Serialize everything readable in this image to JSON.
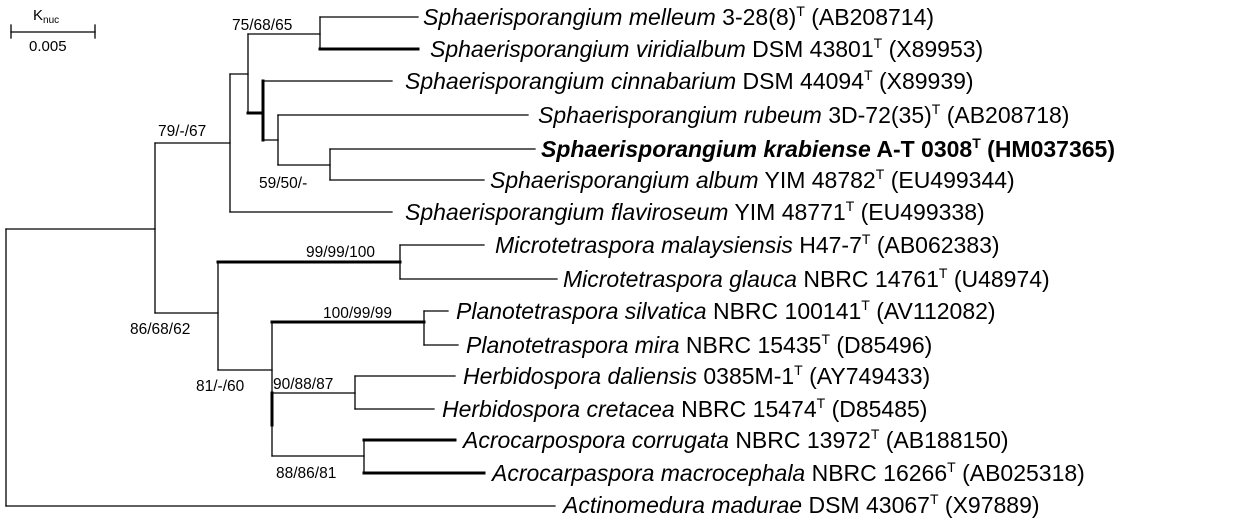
{
  "scale_bar": {
    "label": "K",
    "label_subscript": "nuc",
    "value": "0.005"
  },
  "taxa": [
    {
      "genus": "Sphaerisporangium",
      "species": "melleum",
      "strain": "3-28(8)",
      "type": "T",
      "accession": "(AB208714)"
    },
    {
      "genus": "Sphaerisporangium",
      "species": "viridialbum",
      "strain": "DSM 43801",
      "type": "T",
      "accession": "(X89953)"
    },
    {
      "genus": "Sphaerisporangium",
      "species": "cinnabarium",
      "strain": "DSM 44094",
      "type": "T",
      "accession": "(X89939)"
    },
    {
      "genus": "Sphaerisporangium",
      "species": "rubeum",
      "strain": "3D-72(35)",
      "type": "T",
      "accession": "(AB208718)"
    },
    {
      "genus": "Sphaerisporangium",
      "species": "krabiense",
      "strain": "A-T 0308",
      "type": "T",
      "accession": "(HM037365)",
      "emphasis": "bold"
    },
    {
      "genus": "Sphaerisporangium",
      "species": "album",
      "strain": "YIM 48782",
      "type": "T",
      "accession": "(EU499344)"
    },
    {
      "genus": "Sphaerisporangium",
      "species": "flaviroseum",
      "strain": "YIM 48771",
      "type": "T",
      "accession": "(EU499338)"
    },
    {
      "genus": "Microtetraspora",
      "species": "malaysiensis",
      "strain": "H47-7",
      "type": "T",
      "accession": "(AB062383)"
    },
    {
      "genus": "Microtetraspora",
      "species": "glauca",
      "strain": "NBRC 14761",
      "type": "T",
      "accession": "(U48974)"
    },
    {
      "genus": "Planotetraspora",
      "species": "silvatica",
      "strain": "NBRC 100141",
      "type": "T",
      "accession": "(AV112082)"
    },
    {
      "genus": "Planotetraspora",
      "species": "mira",
      "strain": "NBRC 15435",
      "type": "T",
      "accession": "(D85496)"
    },
    {
      "genus": "Herbidospora",
      "species": "daliensis",
      "strain": "0385M-1",
      "type": "T",
      "accession": "(AY749433)"
    },
    {
      "genus": "Herbidospora",
      "species": "cretacea",
      "strain": "NBRC 15474",
      "type": "T",
      "accession": "(D85485)"
    },
    {
      "genus": "Acrocarpospora",
      "species": "corrugata",
      "strain": "NBRC 13972",
      "type": "T",
      "accession": "(AB188150)"
    },
    {
      "genus": "Acrocarpaspora",
      "species": "macrocephala",
      "strain": "NBRC 16266",
      "type": "T",
      "accession": "(AB025318)"
    },
    {
      "genus": "Actinomedura",
      "species": "madurae",
      "strain": "DSM 43067",
      "type": "T",
      "accession": "(X97889)"
    }
  ],
  "bootstrap": [
    "75/68/65",
    "79/-/67",
    "59/50/-",
    "99/99/100",
    "86/68/62",
    "100/99/99",
    "81/-/60",
    "90/88/87",
    "88/86/81"
  ]
}
